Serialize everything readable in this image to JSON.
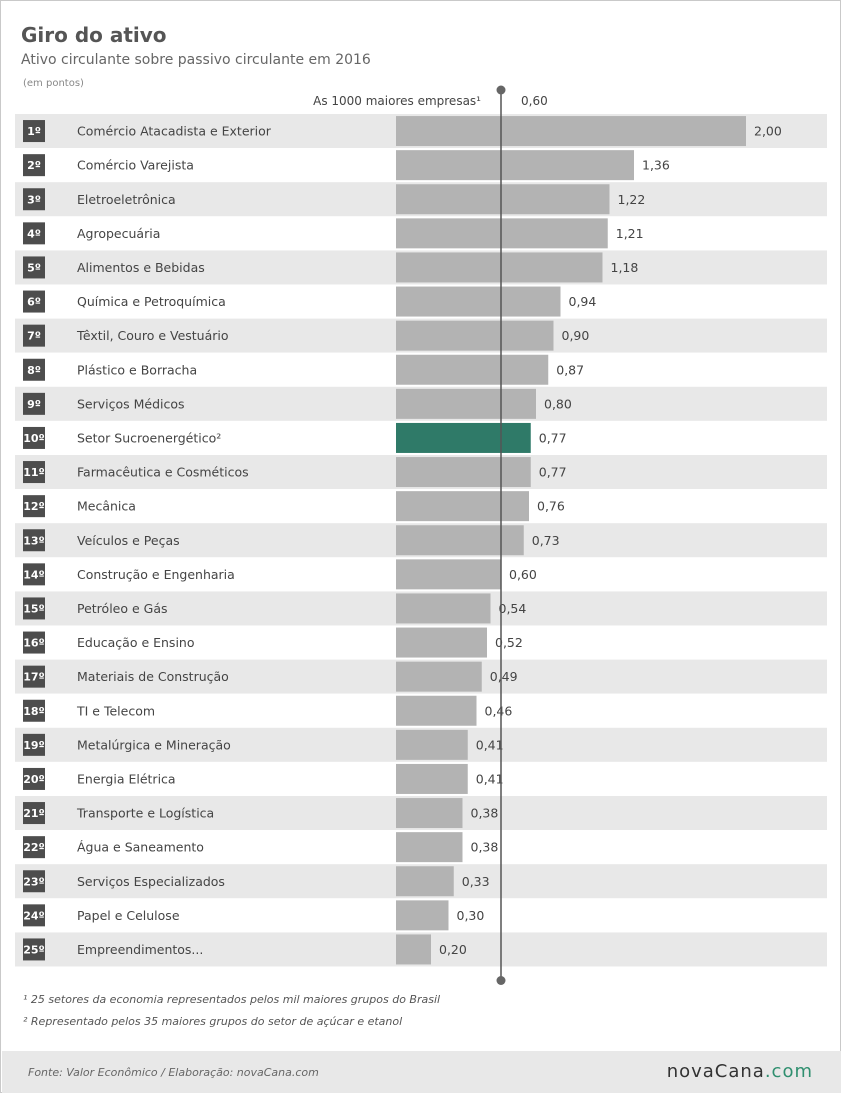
{
  "header": {
    "title": "Giro do ativo",
    "subtitle": "Ativo circulante sobre passivo circulante em 2016",
    "unit": "(em pontos)"
  },
  "chart_data": {
    "type": "bar",
    "orientation": "horizontal",
    "title": "Giro do ativo",
    "subtitle": "Ativo circulante sobre passivo circulante em 2016",
    "unit": "(em pontos)",
    "reference": {
      "label": "As 1000 maiores empresas¹",
      "value": 0.6,
      "value_label": "0,60"
    },
    "ranks": [
      "1º",
      "2º",
      "3º",
      "4º",
      "5º",
      "6º",
      "7º",
      "8º",
      "9º",
      "10º",
      "11º",
      "12º",
      "13º",
      "14º",
      "15º",
      "16º",
      "17º",
      "18º",
      "19º",
      "20º",
      "21º",
      "22º",
      "23º",
      "24º",
      "25º"
    ],
    "categories": [
      "Comércio Atacadista e Exterior",
      "Comércio Varejista",
      "Eletroeletrônica",
      "Agropecuária",
      "Alimentos e Bebidas",
      "Química e Petroquímica",
      "Têxtil, Couro e Vestuário",
      "Plástico e Borracha",
      "Serviços Médicos",
      "Setor Sucroenergético²",
      "Farmacêutica e Cosméticos",
      "Mecânica",
      "Veículos e Peças",
      "Construção e Engenharia",
      "Petróleo e Gás",
      "Educação e Ensino",
      "Materiais de Construção",
      "TI e Telecom",
      "Metalúrgica e Mineração",
      "Energia Elétrica",
      "Transporte e Logística",
      "Água e Saneamento",
      "Serviços Especializados",
      "Papel e Celulose",
      "Empreendimentos..."
    ],
    "values": [
      2.0,
      1.36,
      1.22,
      1.21,
      1.18,
      0.94,
      0.9,
      0.87,
      0.8,
      0.77,
      0.77,
      0.76,
      0.73,
      0.6,
      0.54,
      0.52,
      0.49,
      0.46,
      0.41,
      0.41,
      0.38,
      0.38,
      0.33,
      0.3,
      0.2
    ],
    "value_labels": [
      "2,00",
      "1,36",
      "1,22",
      "1,21",
      "1,18",
      "0,94",
      "0,90",
      "0,87",
      "0,80",
      "0,77",
      "0,77",
      "0,76",
      "0,73",
      "0,60",
      "0,54",
      "0,52",
      "0,49",
      "0,46",
      "0,41",
      "0,41",
      "0,38",
      "0,38",
      "0,33",
      "0,30",
      "0,20"
    ],
    "highlight_index": 9,
    "xlim": [
      0,
      2.0
    ],
    "colors": {
      "bar": "#b3b3b3",
      "highlight": "#2f7a68",
      "rank_box": "#4d4d4d",
      "row_alt": "#e8e8e8"
    }
  },
  "notes": [
    "¹ 25 setores da economia representados pelos mil maiores grupos do Brasil",
    "² Representado pelos 35 maiores grupos do setor de açúcar e etanol"
  ],
  "footer": {
    "source": "Fonte: Valor Econômico / Elaboração: novaCana.com",
    "logo_main": "novaCana",
    "logo_suffix": ".com"
  }
}
